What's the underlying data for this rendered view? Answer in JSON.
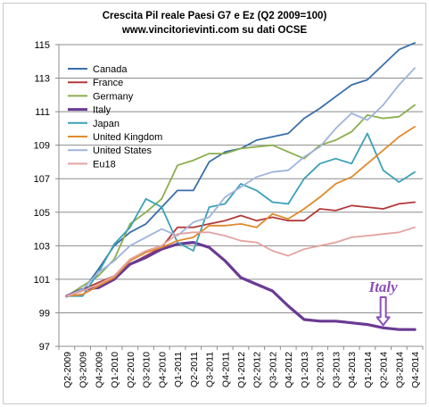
{
  "chart_data": {
    "type": "line",
    "title": "Crescita Pil reale Paesi G7 e Ez  (Q2 2009=100)",
    "subtitle": "www.vincitorievinti.com su dati OCSE",
    "xlabel": "",
    "ylabel": "",
    "ylim": [
      97,
      115
    ],
    "yticks": [
      97,
      99,
      101,
      103,
      105,
      107,
      109,
      111,
      113,
      115
    ],
    "grid": true,
    "legend_position": "top-left",
    "categories": [
      "Q2-2009",
      "Q3-2009",
      "Q4-2009",
      "Q1-2010",
      "Q2-2010",
      "Q3-2010",
      "Q4-2010",
      "Q1-2011",
      "Q2-2011",
      "Q3-2011",
      "Q4-2011",
      "Q1-2012",
      "Q2-2012",
      "Q3-2012",
      "Q4-2012",
      "Q1-2013",
      "Q2-2013",
      "Q3-2013",
      "Q4-2013",
      "Q1-2014",
      "Q2-2014",
      "Q3-2014",
      "Q4-2014"
    ],
    "series": [
      {
        "name": "Canada",
        "color": "#3a6fa8",
        "width": 1.8,
        "values": [
          100,
          100.3,
          101.6,
          103.0,
          103.8,
          104.3,
          105.3,
          106.3,
          106.3,
          108.0,
          108.6,
          108.8,
          109.3,
          109.5,
          109.7,
          110.6,
          111.2,
          111.9,
          112.6,
          112.9,
          113.8,
          114.7,
          115.1
        ]
      },
      {
        "name": "France",
        "color": "#b23a3a",
        "width": 1.8,
        "values": [
          100,
          100.4,
          100.8,
          101.2,
          101.9,
          102.4,
          102.9,
          104.1,
          104.1,
          104.3,
          104.5,
          104.8,
          104.5,
          104.7,
          104.5,
          104.5,
          105.2,
          105.1,
          105.4,
          105.3,
          105.2,
          105.5,
          105.6
        ]
      },
      {
        "name": "Germany",
        "color": "#8aaf4d",
        "width": 1.8,
        "values": [
          100,
          100.6,
          101.2,
          102.2,
          104.3,
          105.0,
          105.8,
          107.8,
          108.1,
          108.5,
          108.5,
          108.8,
          108.9,
          109.0,
          108.6,
          108.2,
          109.0,
          109.3,
          109.8,
          110.8,
          110.6,
          110.7,
          111.4
        ]
      },
      {
        "name": "Italy",
        "color": "#6a3a94",
        "width": 3.2,
        "values": [
          100,
          100.4,
          100.5,
          101.0,
          101.9,
          102.3,
          102.8,
          103.1,
          103.2,
          102.9,
          102.1,
          101.1,
          100.7,
          100.3,
          99.4,
          98.6,
          98.5,
          98.5,
          98.4,
          98.3,
          98.1,
          98.0,
          98.0
        ]
      },
      {
        "name": "Japan",
        "color": "#3aa1b8",
        "width": 1.8,
        "values": [
          100,
          100.0,
          101.4,
          103.1,
          104.1,
          105.8,
          105.3,
          103.2,
          102.7,
          105.3,
          105.5,
          106.7,
          106.3,
          105.6,
          105.5,
          107.0,
          107.9,
          108.2,
          107.9,
          109.7,
          107.5,
          106.8,
          107.4
        ]
      },
      {
        "name": "United Kingdom",
        "color": "#e08a2a",
        "width": 1.8,
        "values": [
          100,
          100.1,
          100.6,
          101.1,
          102.1,
          102.6,
          102.9,
          103.3,
          103.5,
          104.2,
          104.2,
          104.3,
          104.1,
          104.9,
          104.6,
          105.2,
          105.9,
          106.7,
          107.1,
          107.9,
          108.7,
          109.5,
          110.1
        ]
      },
      {
        "name": "United States",
        "color": "#9fb4dc",
        "width": 1.8,
        "values": [
          100,
          100.4,
          101.4,
          102.1,
          103.0,
          103.5,
          104.0,
          103.6,
          104.4,
          104.7,
          105.9,
          106.5,
          107.1,
          107.4,
          107.5,
          108.3,
          108.9,
          110.0,
          110.9,
          110.5,
          111.4,
          112.6,
          113.6
        ]
      },
      {
        "name": "Eu18",
        "color": "#e3a3a0",
        "width": 1.8,
        "values": [
          100,
          100.3,
          100.7,
          101.2,
          102.2,
          102.7,
          103.0,
          103.7,
          103.8,
          103.8,
          103.6,
          103.3,
          103.2,
          102.7,
          102.4,
          102.8,
          103.0,
          103.2,
          103.5,
          103.6,
          103.7,
          103.8,
          104.1
        ]
      }
    ],
    "annotations": [
      {
        "text": "Italy",
        "color": "#8a4fb8",
        "x": "Q2-2014",
        "y": 98.1
      }
    ]
  }
}
